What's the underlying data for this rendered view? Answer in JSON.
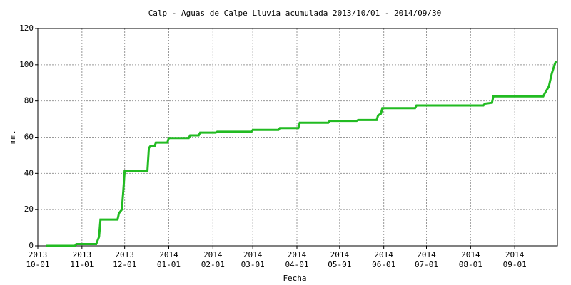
{
  "chart_data": {
    "type": "line",
    "title": "Calp - Aguas de Calpe Lluvia acumulada 2013/10/01 - 2014/09/30",
    "x_label": "Fecha",
    "y_label": "mm.",
    "xlim": [
      "2013-10-01",
      "2014-10-01"
    ],
    "xticks": [
      {
        "value": "2013-10-01",
        "label": [
          "2013",
          "10-01"
        ]
      },
      {
        "value": "2013-11-01",
        "label": [
          "2013",
          "11-01"
        ]
      },
      {
        "value": "2013-12-01",
        "label": [
          "2013",
          "12-01"
        ]
      },
      {
        "value": "2014-01-01",
        "label": [
          "2014",
          "01-01"
        ]
      },
      {
        "value": "2014-02-01",
        "label": [
          "2014",
          "02-01"
        ]
      },
      {
        "value": "2014-03-01",
        "label": [
          "2014",
          "03-01"
        ]
      },
      {
        "value": "2014-04-01",
        "label": [
          "2014",
          "04-01"
        ]
      },
      {
        "value": "2014-05-01",
        "label": [
          "2014",
          "05-01"
        ]
      },
      {
        "value": "2014-06-01",
        "label": [
          "2014",
          "06-01"
        ]
      },
      {
        "value": "2014-07-01",
        "label": [
          "2014",
          "07-01"
        ]
      },
      {
        "value": "2014-08-01",
        "label": [
          "2014",
          "08-01"
        ]
      },
      {
        "value": "2014-09-01",
        "label": [
          "2014",
          "09-01"
        ]
      }
    ],
    "ylim": [
      0,
      120
    ],
    "yticks": [
      0,
      20,
      40,
      60,
      80,
      100,
      120
    ],
    "grid": true,
    "x": [
      "2013-10-07",
      "2013-10-27",
      "2013-10-28",
      "2013-11-11",
      "2013-11-13",
      "2013-11-14",
      "2013-11-26",
      "2013-11-27",
      "2013-11-29",
      "2013-11-30",
      "2013-12-01",
      "2013-12-17",
      "2013-12-18",
      "2013-12-19",
      "2013-12-22",
      "2013-12-23",
      "2013-12-31",
      "2014-01-01",
      "2014-01-15",
      "2014-01-16",
      "2014-01-22",
      "2014-01-23",
      "2014-02-03",
      "2014-02-04",
      "2014-02-28",
      "2014-03-01",
      "2014-03-19",
      "2014-03-20",
      "2014-04-02",
      "2014-04-03",
      "2014-04-23",
      "2014-04-24",
      "2014-05-13",
      "2014-05-14",
      "2014-05-27",
      "2014-05-28",
      "2014-05-30",
      "2014-05-31",
      "2014-06-23",
      "2014-06-24",
      "2014-08-10",
      "2014-08-11",
      "2014-08-16",
      "2014-08-17",
      "2014-09-21",
      "2014-09-22",
      "2014-09-25",
      "2014-09-27",
      "2014-09-29",
      "2014-09-30"
    ],
    "series": [
      {
        "name": "Lluvia acumulada",
        "color": "#22bb22",
        "values": [
          0,
          0,
          1,
          1,
          5,
          14.5,
          14.5,
          18,
          20,
          30,
          41.5,
          41.5,
          54,
          55,
          55,
          57,
          57,
          59.5,
          59.5,
          61,
          61,
          62.5,
          62.5,
          63,
          63,
          64,
          64,
          65,
          65,
          68,
          68,
          69,
          69,
          69.5,
          69.5,
          72,
          73,
          76,
          76,
          77.5,
          77.5,
          78.5,
          79,
          82.5,
          82.5,
          84,
          88,
          95,
          100,
          102
        ]
      }
    ]
  }
}
